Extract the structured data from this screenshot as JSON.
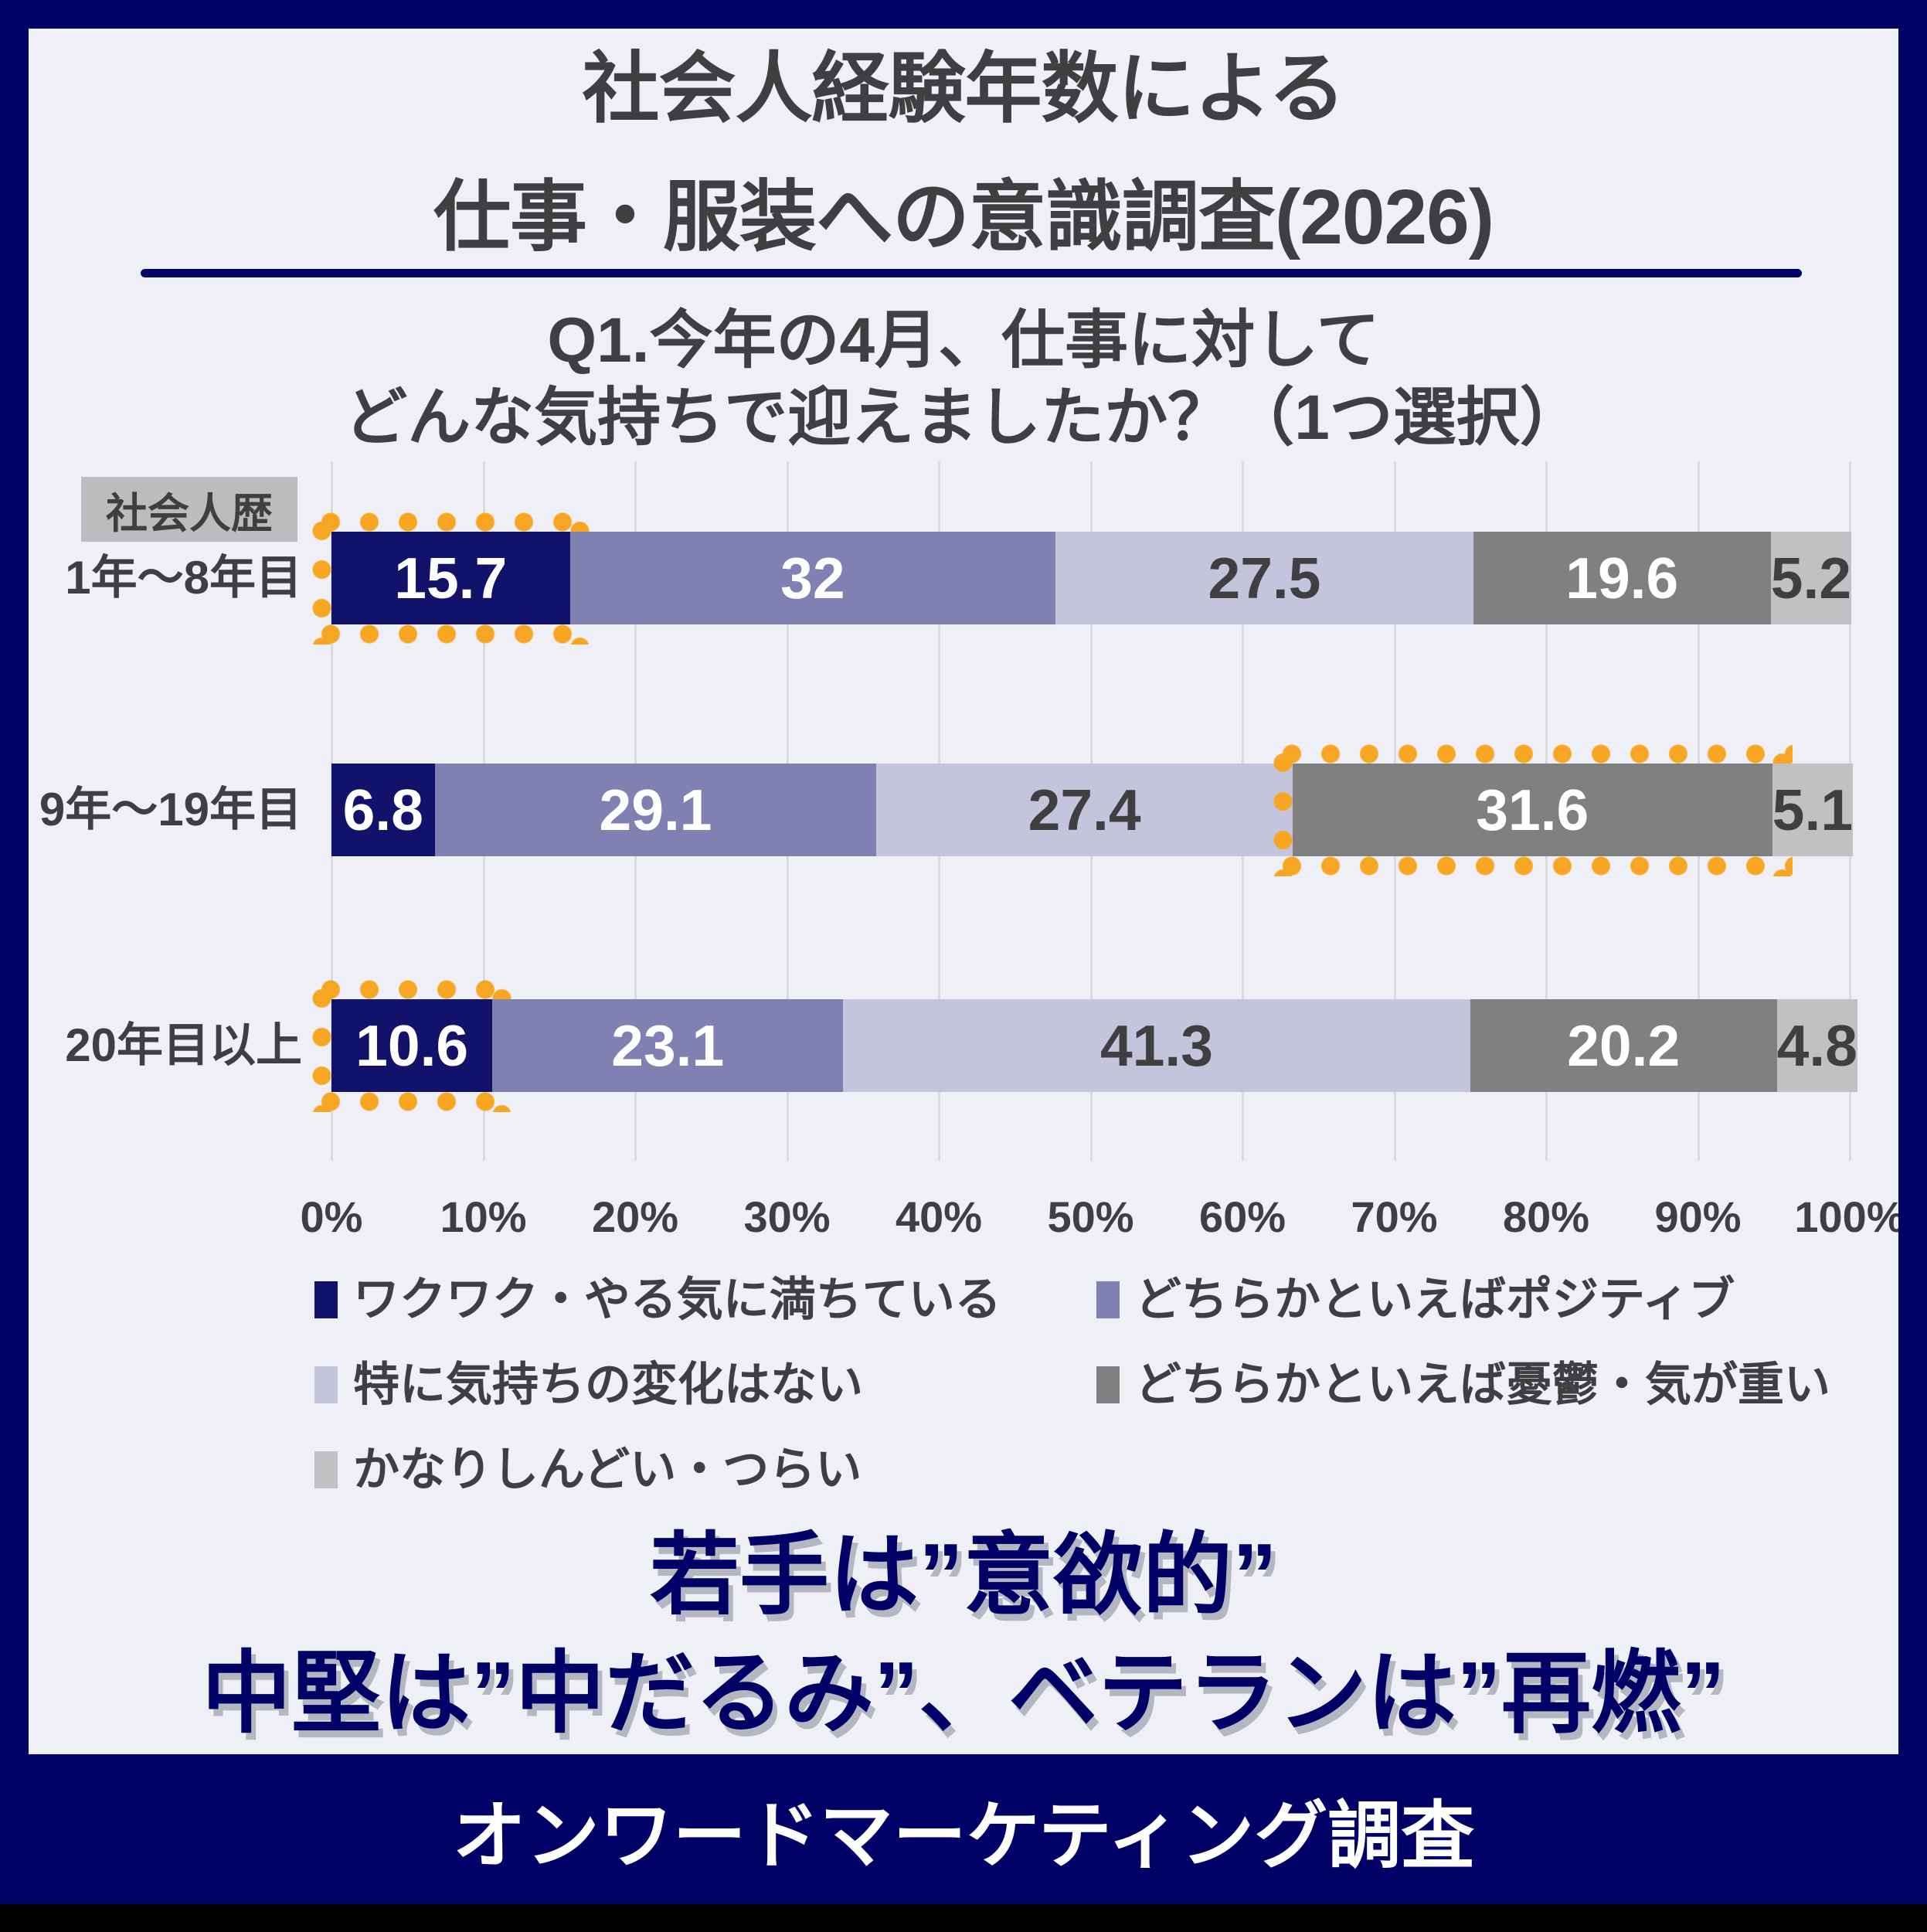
{
  "meta": {
    "border_color": "#000066",
    "card_background": "#eff0f5",
    "accent_orange": "#f6a623",
    "text_dark": "#3f3f41",
    "gridline_color": "#d9dade",
    "conclusion_color": "#000066",
    "footer_background": "#000066",
    "bottom_strip_color": "#000000"
  },
  "header": {
    "title_line1": "社会人経験年数による",
    "title_line2": "仕事・服装への意識調査(2026)",
    "question_line1": "Q1.今年の4月、仕事に対して",
    "question_line2": "どんな気持ちで迎えましたか？（1つ選択）"
  },
  "chart_data": {
    "type": "bar",
    "stacked": true,
    "orientation": "horizontal",
    "row_header_label": "社会人歴",
    "categories": [
      "1年〜8年目",
      "9年〜19年目",
      "20年目以上"
    ],
    "series": [
      {
        "name": "ワクワク・やる気に満ちている",
        "color": "#12126b",
        "label_color": "#ffffff",
        "values": [
          15.7,
          6.8,
          10.6
        ]
      },
      {
        "name": "どちらかといえばポジティブ",
        "color": "#8080b2",
        "label_color": "#ffffff",
        "values": [
          32,
          29.1,
          23.1
        ]
      },
      {
        "name": "特に気持ちの変化はない",
        "color": "#c4c4dc",
        "label_color": "#3f3f42",
        "values": [
          27.5,
          27.4,
          41.3
        ]
      },
      {
        "name": "どちらかといえば憂鬱・気が重い",
        "color": "#808080",
        "label_color": "#ffffff",
        "values": [
          19.6,
          31.6,
          20.2
        ]
      },
      {
        "name": "かなりしんどい・つらい",
        "color": "#c1c1c4",
        "label_color": "#3f3f42",
        "values": [
          5.2,
          5.1,
          4.8
        ]
      }
    ],
    "highlights": [
      {
        "row": 0,
        "series": 0
      },
      {
        "row": 1,
        "series": 3
      },
      {
        "row": 2,
        "series": 0
      }
    ],
    "x_ticks": [
      "0%",
      "10%",
      "20%",
      "30%",
      "40%",
      "50%",
      "60%",
      "70%",
      "80%",
      "90%",
      "100%"
    ],
    "xlim": [
      0,
      100
    ],
    "grid": true,
    "legend_position": "bottom"
  },
  "conclusion": {
    "line1": "若手は”意欲的”",
    "line2": "中堅は”中だるみ”、ベテランは”再燃”"
  },
  "footer": {
    "label": "オンワードマーケティング調査"
  }
}
